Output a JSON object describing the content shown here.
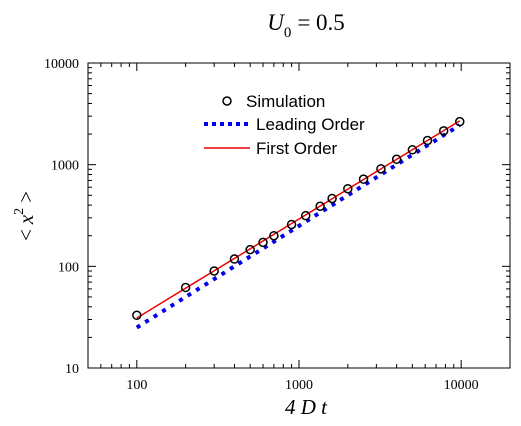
{
  "chart_data": {
    "type": "scatter",
    "title": {
      "main": "U",
      "sub": "0",
      "rest": "= 0.5"
    },
    "xlabel": "4 D t",
    "ylabel": {
      "open": "<",
      "var": "x",
      "sup": "2",
      "close": ">"
    },
    "x_scale": "log",
    "y_scale": "log",
    "xlim": [
      50,
      20000
    ],
    "ylim": [
      10,
      10000
    ],
    "x_ticks": [
      100,
      1000,
      10000
    ],
    "x_tick_labels": [
      "100",
      "1000",
      "10000"
    ],
    "y_ticks": [
      10,
      100,
      1000,
      10000
    ],
    "y_tick_labels": [
      "10",
      "100",
      "1000",
      "10000"
    ],
    "grid": false,
    "legend_position": "top-center",
    "series": [
      {
        "name": "Simulation",
        "style": "open-circle-markers",
        "color": "#000000",
        "x": [
          100,
          200,
          300,
          400,
          500,
          600,
          700,
          900,
          1100,
          1350,
          1600,
          2000,
          2500,
          3200,
          4000,
          5000,
          6200,
          7800,
          9800
        ],
        "y": [
          33,
          62,
          90,
          118,
          146,
          172,
          200,
          258,
          315,
          390,
          465,
          580,
          720,
          910,
          1130,
          1400,
          1730,
          2150,
          2650
        ]
      },
      {
        "name": "Leading Order",
        "style": "dotted-line",
        "color": "#0000ee",
        "x": [
          100,
          200,
          300,
          400,
          500,
          600,
          700,
          900,
          1100,
          1350,
          1600,
          2000,
          2500,
          3200,
          4000,
          5000,
          6200,
          7800,
          9800
        ],
        "y": [
          25,
          50,
          75,
          100,
          125,
          150,
          175,
          225,
          275,
          338,
          400,
          500,
          625,
          800,
          1000,
          1250,
          1550,
          1950,
          2450
        ]
      },
      {
        "name": "First Order",
        "style": "solid-line",
        "color": "#ee0000",
        "x": [
          100,
          9800
        ],
        "y": [
          31,
          2700
        ]
      }
    ]
  }
}
